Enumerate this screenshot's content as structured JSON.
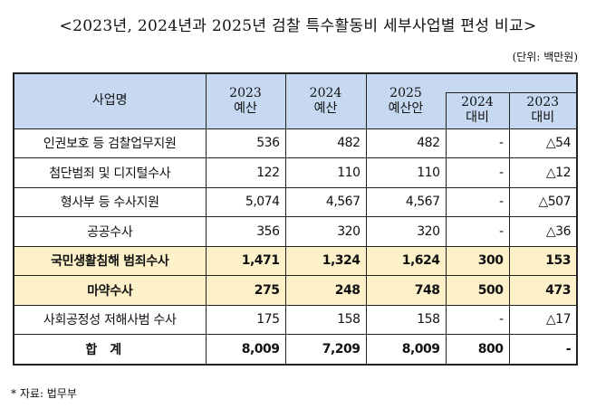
{
  "title": "<2023년, 2024년과 2025년 검찰 특수활동비 세부사업별 편성 비교>",
  "unit": "(단위: 백만원)",
  "headers": {
    "name": "사업명",
    "y2023": [
      "2023",
      "예산"
    ],
    "y2024": [
      "2024",
      "예산"
    ],
    "y2025": [
      "2025",
      "예산안"
    ],
    "vs2024": [
      "2024",
      "대비"
    ],
    "vs2023": [
      "2023",
      "대비"
    ]
  },
  "rows": [
    {
      "name": "인권보호 등 검찰업무지원",
      "b2023": "536",
      "b2024": "482",
      "b2025": "482",
      "vs2024": "-",
      "vs2023": "△54",
      "highlight": false
    },
    {
      "name": "첨단범죄 및 디지털수사",
      "b2023": "122",
      "b2024": "110",
      "b2025": "110",
      "vs2024": "-",
      "vs2023": "△12",
      "highlight": false
    },
    {
      "name": "형사부 등 수사지원",
      "b2023": "5,074",
      "b2024": "4,567",
      "b2025": "4,567",
      "vs2024": "-",
      "vs2023": "△507",
      "highlight": false
    },
    {
      "name": "공공수사",
      "b2023": "356",
      "b2024": "320",
      "b2025": "320",
      "vs2024": "-",
      "vs2023": "△36",
      "highlight": false
    },
    {
      "name": "국민생활침해 범죄수사",
      "b2023": "1,471",
      "b2024": "1,324",
      "b2025": "1,624",
      "vs2024": "300",
      "vs2023": "153",
      "highlight": true
    },
    {
      "name": "마약수사",
      "b2023": "275",
      "b2024": "248",
      "b2025": "748",
      "vs2024": "500",
      "vs2023": "473",
      "highlight": true
    },
    {
      "name": "사회공정성 저해사범 수사",
      "b2023": "175",
      "b2024": "158",
      "b2025": "158",
      "vs2024": "-",
      "vs2023": "△17",
      "highlight": false
    }
  ],
  "total": {
    "name": "합계",
    "b2023": "8,009",
    "b2024": "7,209",
    "b2025": "8,009",
    "vs2024": "800",
    "vs2023": "-"
  },
  "colors": {
    "header_bg": "#c6d9f0",
    "highlight_bg": "#fdf1c9"
  },
  "footnote": "* 자료: 법무부"
}
